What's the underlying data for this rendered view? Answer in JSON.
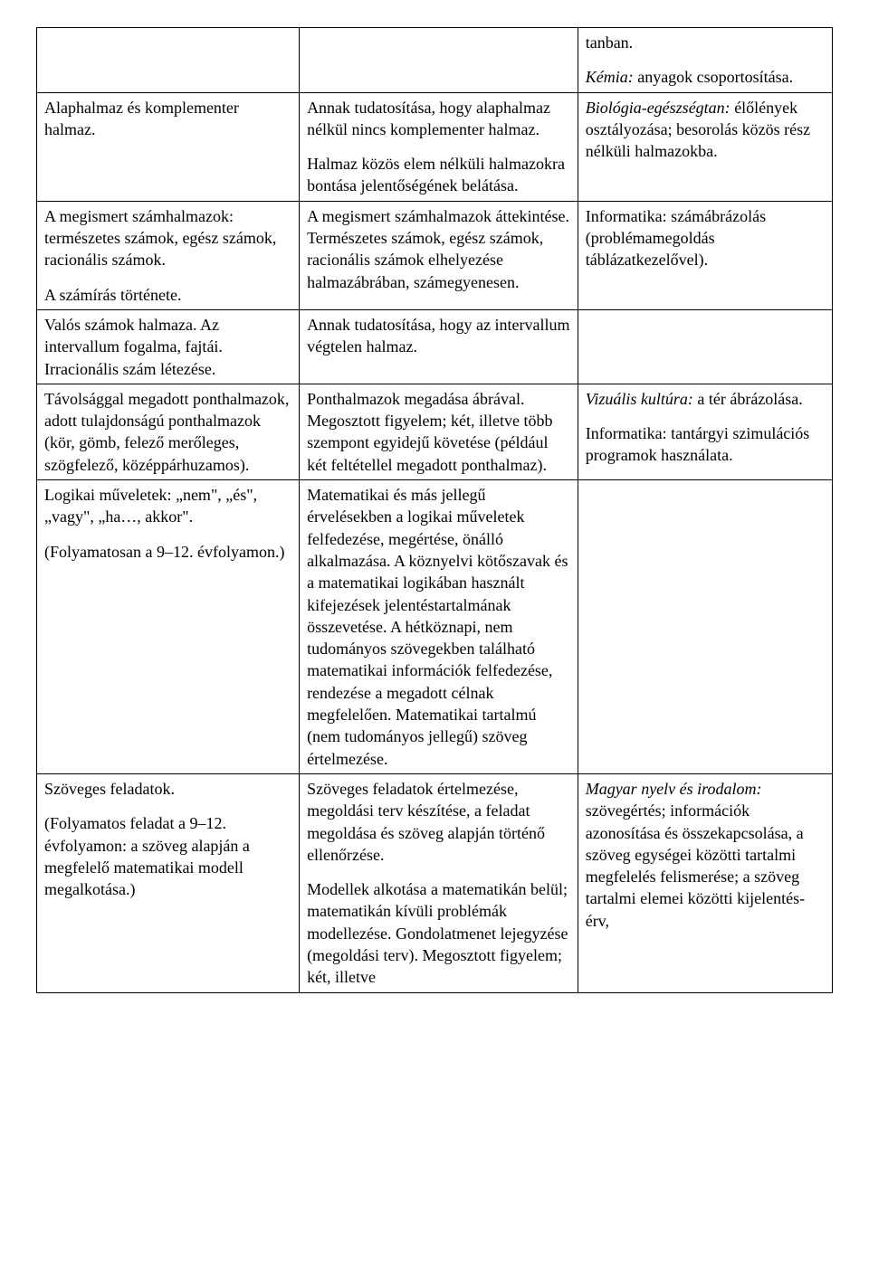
{
  "rows": [
    {
      "c1": [],
      "c2": [],
      "c3": [
        {
          "text": "tanban.",
          "italic": false
        },
        {
          "text": "Kémia: anyagok csoportosítása.",
          "italic_prefix": "Kémia:",
          "rest": " anyagok csoportosítása."
        }
      ]
    },
    {
      "c1": [
        {
          "text": "Alaphalmaz és komplementer halmaz."
        }
      ],
      "c2": [
        {
          "text": "Annak tudatosítása, hogy alaphalmaz nélkül nincs komplementer halmaz."
        },
        {
          "text": "Halmaz közös elem nélküli halmazokra bontása jelentőségének belátása."
        }
      ],
      "c3": [
        {
          "italic_prefix": "Biológia-egészségtan:",
          "rest": " élőlények osztályozása; besorolás közös rész nélküli halmazokba."
        }
      ]
    },
    {
      "c1": [
        {
          "text": "A megismert számhalmazok: természetes számok, egész számok, racionális számok."
        },
        {
          "text": "A számírás története."
        }
      ],
      "c2": [
        {
          "text": "A megismert számhalmazok áttekintése. Természetes számok, egész számok, racionális számok elhelyezése halmazábrában, számegyenesen."
        }
      ],
      "c3": [
        {
          "text": "Informatika: számábrázolás (problémamegoldás táblázatkezelővel)."
        }
      ]
    },
    {
      "c1": [
        {
          "text": "Valós számok halmaza. Az intervallum fogalma, fajtái. Irracionális szám létezése."
        }
      ],
      "c2": [
        {
          "text": "Annak tudatosítása, hogy az intervallum végtelen halmaz."
        }
      ],
      "c3": []
    },
    {
      "c1": [
        {
          "text": "Távolsággal megadott ponthalmazok, adott tulajdonságú ponthalmazok (kör, gömb, felező merőleges, szögfelező, középpárhuzamos)."
        }
      ],
      "c2": [
        {
          "text": "Ponthalmazok megadása ábrával. Megosztott figyelem; két, illetve több szempont egyidejű követése (például két feltétellel megadott ponthalmaz)."
        }
      ],
      "c3": [
        {
          "italic_prefix": "Vizuális kultúra:",
          "rest": " a tér ábrázolása."
        },
        {
          "text": "Informatika: tantárgyi szimulációs programok használata."
        }
      ]
    },
    {
      "c1": [
        {
          "text": "Logikai műveletek: „nem\", „és\", „vagy\", „ha…, akkor\"."
        },
        {
          "text": "(Folyamatosan a 9–12. évfolyamon.)"
        }
      ],
      "c2": [
        {
          "text": "Matematikai és más jellegű érvelésekben a logikai műveletek felfedezése, megértése, önálló alkalmazása. A köznyelvi kötőszavak és a matematikai logikában használt kifejezések jelentéstartalmának összevetése. A hétköznapi, nem tudományos szövegekben található matematikai információk felfedezése, rendezése a megadott célnak megfelelően. Matematikai tartalmú (nem tudományos jellegű) szöveg értelmezése."
        }
      ],
      "c3": []
    },
    {
      "c1": [
        {
          "text": "Szöveges feladatok."
        },
        {
          "text": "(Folyamatos feladat a 9–12. évfolyamon: a szöveg alapján a megfelelő matematikai modell megalkotása.)"
        }
      ],
      "c2": [
        {
          "text": "Szöveges feladatok értelmezése, megoldási terv készítése, a feladat megoldása és szöveg alapján történő ellenőrzése."
        },
        {
          "text": "Modellek alkotása a matematikán belül; matematikán kívüli problémák modellezése. Gondolatmenet lejegyzése (megoldási terv). Megosztott figyelem; két, illetve"
        }
      ],
      "c3": [
        {
          "italic_prefix": "Magyar nyelv és irodalom:",
          "rest": " szövegértés; információk azonosítása és összekapcsolása, a szöveg egységei közötti tartalmi megfelelés felismerése; a szöveg tartalmi elemei közötti kijelentés-érv,"
        }
      ]
    }
  ]
}
